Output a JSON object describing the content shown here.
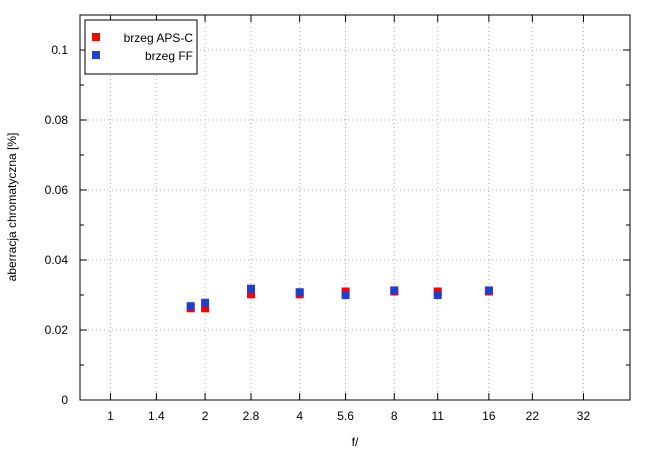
{
  "chart_data": {
    "type": "scatter",
    "xlabel": "f/",
    "ylabel": "aberracja chromatyczna [%]",
    "x_tick_labels": [
      "1",
      "1.4",
      "2",
      "2.8",
      "4",
      "5.6",
      "8",
      "11",
      "16",
      "22",
      "32"
    ],
    "x_scale": "log2 f-stop",
    "xlim": [
      "0.8",
      "45"
    ],
    "ylim": [
      0,
      0.11
    ],
    "y_tick_labels": [
      "0",
      "0.02",
      "0.04",
      "0.06",
      "0.08",
      "0.1"
    ],
    "y_ticks": [
      0,
      0.02,
      0.04,
      0.06,
      0.08,
      0.1
    ],
    "grid": true,
    "legend_position": "top-left",
    "series": [
      {
        "name": "brzeg APS-C",
        "color": "#ff0000",
        "x": [
          1.8,
          2,
          2.8,
          4,
          5.6,
          8,
          11,
          16
        ],
        "y": [
          0.0262,
          0.0262,
          0.0302,
          0.0302,
          0.031,
          0.031,
          0.031,
          0.031
        ]
      },
      {
        "name": "brzeg FF",
        "color": "#1f3fcf",
        "x": [
          1.8,
          2,
          2.8,
          4,
          5.6,
          8,
          11,
          16
        ],
        "y": [
          0.0268,
          0.0278,
          0.0318,
          0.0308,
          0.03,
          0.0313,
          0.03,
          0.0313
        ]
      }
    ]
  }
}
